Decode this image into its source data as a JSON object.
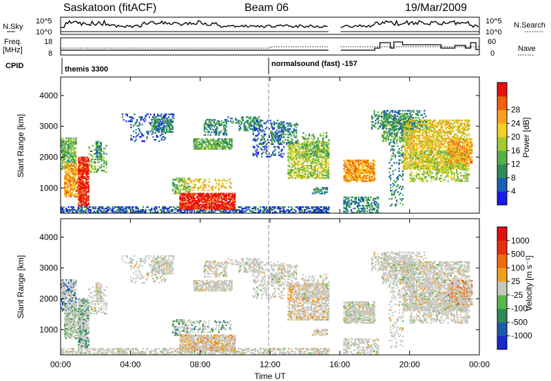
{
  "header": {
    "station": "Saskatoon (fitACF)",
    "beam": "Beam 06",
    "date": "19/Mar/2009"
  },
  "strips": {
    "nsky_label": "N.Sky",
    "nsky_top": "10^5",
    "nsky_bottom": "10^0",
    "nsearch_label": "N.Search",
    "nsearch_top": "10^5",
    "nsearch_bottom": "10^0",
    "freq_label": "Freq.",
    "freq_unit": "[MHz]",
    "freq_top": "18",
    "freq_bottom": "8",
    "nave_label": "Nave",
    "nave_top": "60",
    "nave_bottom": "0",
    "cpid_label": "CPID",
    "cpid_1": "themis 3300",
    "cpid_2": "normalsound (fast) -157"
  },
  "chart_data": [
    {
      "type": "heatmap",
      "name": "power",
      "ylabel": "Slant Range [km]",
      "x_range_hours": [
        0,
        24
      ],
      "y_range_km": [
        180,
        4600
      ],
      "y_ticks": [
        "1000",
        "2000",
        "3000",
        "4000"
      ],
      "colorbar": {
        "label": "Power [dB]",
        "ticks": [
          "4",
          "8",
          "12",
          "16",
          "20",
          "24",
          "28"
        ],
        "colors": [
          "#1a1aee",
          "#1b5fb0",
          "#2e8b57",
          "#55b04a",
          "#a8c830",
          "#f4d020",
          "#f7a020",
          "#f06010",
          "#e81010"
        ]
      }
    },
    {
      "type": "heatmap",
      "name": "velocity",
      "ylabel": "Slant Range [km]",
      "x_range_hours": [
        0,
        24
      ],
      "y_range_km": [
        180,
        4600
      ],
      "y_ticks": [
        "1000",
        "2000",
        "3000",
        "4000"
      ],
      "x_ticks": [
        "00:00",
        "04:00",
        "08:00",
        "12:00",
        "16:00",
        "20:00",
        "00:00"
      ],
      "xlabel": "Time UT",
      "colorbar": {
        "label": "Velocity [m s⁻¹]",
        "ticks": [
          "1000",
          "500",
          "100",
          "25",
          "-25",
          "-100",
          "-500",
          "-1000"
        ],
        "colors": [
          "#1a2ad0",
          "#1e5aa8",
          "#2e8b57",
          "#5ab84a",
          "#c8c8c0",
          "#f0a020",
          "#f06a10",
          "#e83010",
          "#e01010"
        ]
      }
    }
  ]
}
